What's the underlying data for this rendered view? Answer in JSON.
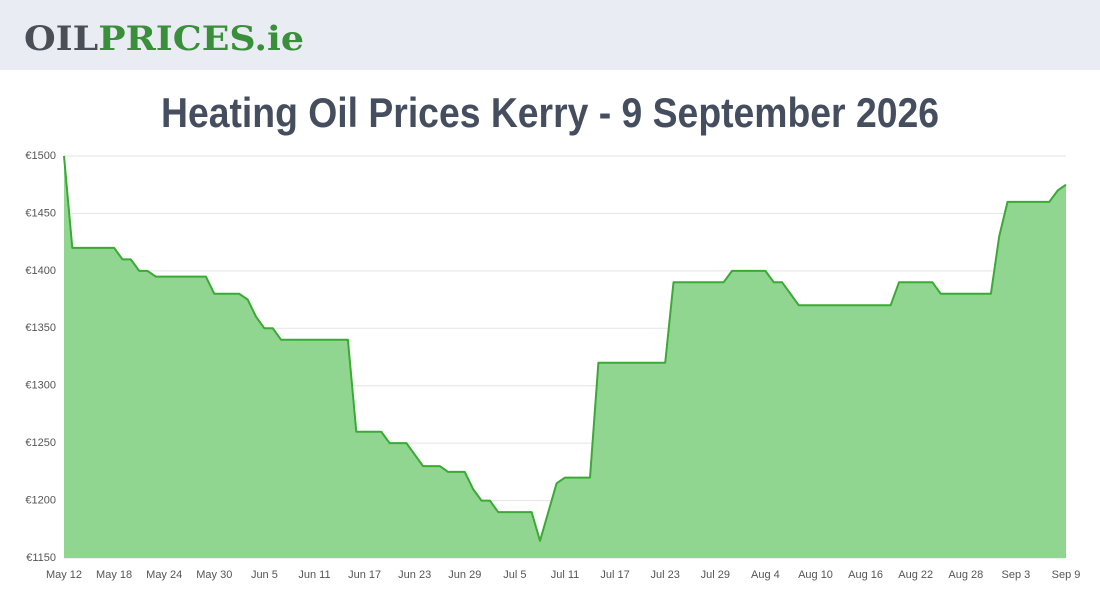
{
  "header": {
    "logo_dark": "OIL",
    "logo_green": "PRICES.ie"
  },
  "chart_data": {
    "type": "area",
    "title": "Heating Oil Prices Kerry - 9 September 2026",
    "categories": [
      "May 12",
      null,
      null,
      null,
      null,
      null,
      "May 18",
      null,
      null,
      null,
      null,
      null,
      "May 24",
      null,
      null,
      null,
      null,
      null,
      "May 30",
      null,
      null,
      null,
      null,
      null,
      "Jun 5",
      null,
      null,
      null,
      null,
      null,
      "Jun 11",
      null,
      null,
      null,
      null,
      null,
      "Jun 17",
      null,
      null,
      null,
      null,
      null,
      "Jun 23",
      null,
      null,
      null,
      null,
      null,
      "Jun 29",
      null,
      null,
      null,
      null,
      null,
      "Jul 5",
      null,
      null,
      null,
      null,
      null,
      "Jul 11",
      null,
      null,
      null,
      null,
      null,
      "Jul 17",
      null,
      null,
      null,
      null,
      null,
      "Jul 23",
      null,
      null,
      null,
      null,
      null,
      "Jul 29",
      null,
      null,
      null,
      null,
      null,
      "Aug 4",
      null,
      null,
      null,
      null,
      null,
      "Aug 10",
      null,
      null,
      null,
      null,
      null,
      "Aug 16",
      null,
      null,
      null,
      null,
      null,
      "Aug 22",
      null,
      null,
      null,
      null,
      null,
      "Aug 28",
      null,
      null,
      null,
      null,
      null,
      "Sep 3",
      null,
      null,
      null,
      null,
      null,
      "Sep 9"
    ],
    "values": [
      1500,
      1420,
      1420,
      1420,
      1420,
      1420,
      1420,
      1410,
      1410,
      1400,
      1400,
      1395,
      1395,
      1395,
      1395,
      1395,
      1395,
      1395,
      1380,
      1380,
      1380,
      1380,
      1375,
      1360,
      1350,
      1350,
      1340,
      1340,
      1340,
      1340,
      1340,
      1340,
      1340,
      1340,
      1340,
      1260,
      1260,
      1260,
      1260,
      1250,
      1250,
      1250,
      1240,
      1230,
      1230,
      1230,
      1225,
      1225,
      1225,
      1210,
      1200,
      1200,
      1190,
      1190,
      1190,
      1190,
      1190,
      1165,
      1190,
      1215,
      1220,
      1220,
      1220,
      1220,
      1320,
      1320,
      1320,
      1320,
      1320,
      1320,
      1320,
      1320,
      1320,
      1390,
      1390,
      1390,
      1390,
      1390,
      1390,
      1390,
      1400,
      1400,
      1400,
      1400,
      1400,
      1390,
      1390,
      1380,
      1370,
      1370,
      1370,
      1370,
      1370,
      1370,
      1370,
      1370,
      1370,
      1370,
      1370,
      1370,
      1390,
      1390,
      1390,
      1390,
      1390,
      1380,
      1380,
      1380,
      1380,
      1380,
      1380,
      1380,
      1430,
      1460,
      1460,
      1460,
      1460,
      1460,
      1460,
      1470,
      1475
    ],
    "color": "#3aaa35",
    "fill": "#90d690",
    "ylim": [
      1150,
      1500
    ],
    "yticks": [
      {
        "value": 1150,
        "label": "€1150"
      },
      {
        "value": 1200,
        "label": "€1200"
      },
      {
        "value": 1250,
        "label": "€1250"
      },
      {
        "value": 1300,
        "label": "€1300"
      },
      {
        "value": 1350,
        "label": "€1350"
      },
      {
        "value": 1400,
        "label": "€1400"
      },
      {
        "value": 1450,
        "label": "€1450"
      },
      {
        "value": 1500,
        "label": "€1500"
      }
    ],
    "grid": true
  }
}
